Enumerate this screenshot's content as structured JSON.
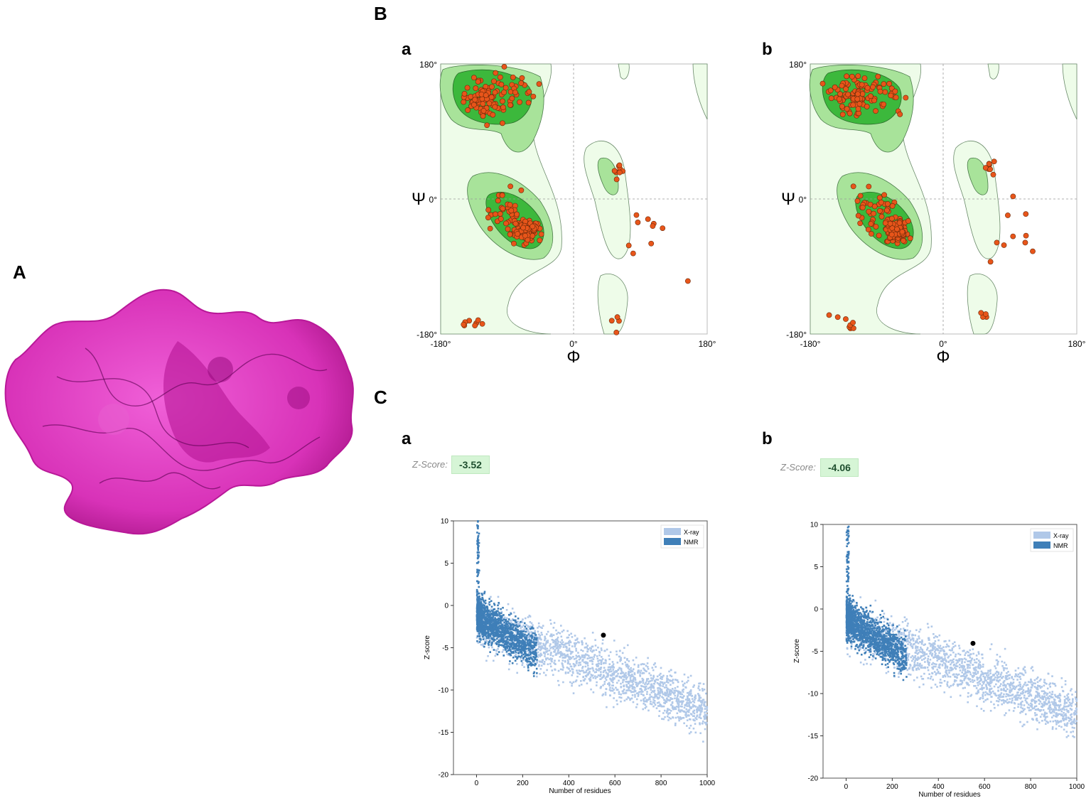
{
  "panels": {
    "A": "A",
    "B": "B",
    "C": "C",
    "B_sub": [
      "a",
      "b"
    ],
    "C_sub": [
      "a",
      "b"
    ]
  },
  "colors": {
    "protein": "#e040c0",
    "rama_bg": "#eefce9",
    "rama_allowed": "#a8e39a",
    "rama_core": "#3cb83c",
    "rama_point": "#e8551a",
    "xray": "#b0c8e8",
    "nmr": "#3f7fb8",
    "zbox": "#d6f5d6"
  },
  "ramachandran": {
    "phi_symbol": "Φ",
    "psi_symbol": "Ψ",
    "tick_labels_x": [
      "-180°",
      "0°",
      "180°"
    ],
    "tick_labels_y": [
      "180°",
      "0°",
      "-180°"
    ],
    "x_range": [
      -180,
      180
    ],
    "y_range": [
      -180,
      180
    ]
  },
  "zscore": {
    "label": "Z-Score:",
    "a_value": "-3.52",
    "b_value": "-4.06",
    "xlabel": "Number of residues",
    "ylabel": "Z-score",
    "legend": [
      "X-ray",
      "NMR"
    ],
    "a_y_ticks": [
      "10",
      "5",
      "0",
      "-5",
      "-10",
      "-15",
      "-20"
    ],
    "b_y_ticks": [
      "10",
      "5",
      "0",
      "-5",
      "-10",
      "-15",
      "-20"
    ],
    "x_ticks": [
      "0",
      "200",
      "400",
      "600",
      "800",
      "1000"
    ]
  },
  "chart_data": [
    {
      "type": "scatter",
      "xlabel": "Φ",
      "ylabel": "Ψ",
      "xlim": [
        -180,
        180
      ],
      "ylim": [
        -180,
        180
      ],
      "points": [
        [
          -60,
          -40
        ],
        [
          -65,
          -35
        ],
        [
          -70,
          -45
        ],
        [
          -55,
          -30
        ],
        [
          -120,
          130
        ],
        [
          -90,
          120
        ],
        [
          -140,
          150
        ],
        [
          60,
          40
        ]
      ]
    },
    {
      "type": "scatter",
      "xlabel": "Φ",
      "ylabel": "Ψ",
      "xlim": [
        -180,
        180
      ],
      "ylim": [
        -180,
        180
      ],
      "points": [
        [
          -60,
          -40
        ],
        [
          -65,
          -35
        ],
        [
          -70,
          -45
        ],
        [
          -55,
          -30
        ],
        [
          -120,
          130
        ],
        [
          -90,
          120
        ],
        [
          -140,
          150
        ],
        [
          60,
          40
        ]
      ]
    },
    {
      "type": "scatter",
      "xlabel": "Number of residues",
      "ylabel": "Z-score",
      "xlim": [
        -100,
        1000
      ],
      "ylim": [
        -20,
        10
      ],
      "series": [
        {
          "name": "X-ray"
        },
        {
          "name": "NMR"
        }
      ],
      "highlight": {
        "x": 550,
        "y": -3.52
      }
    },
    {
      "type": "scatter",
      "xlabel": "Number of residues",
      "ylabel": "Z-score",
      "xlim": [
        -100,
        1000
      ],
      "ylim": [
        -20,
        10
      ],
      "series": [
        {
          "name": "X-ray"
        },
        {
          "name": "NMR"
        }
      ],
      "highlight": {
        "x": 550,
        "y": -4.06
      }
    }
  ]
}
